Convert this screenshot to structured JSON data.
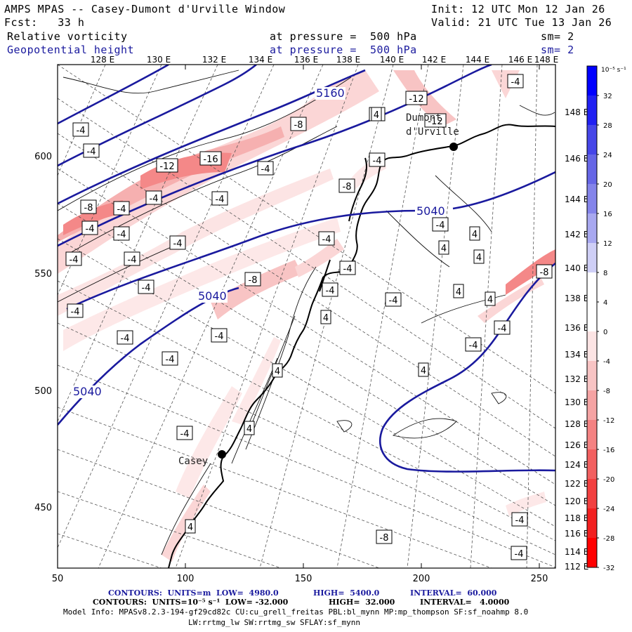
{
  "header": {
    "title": "AMPS MPAS -- Casey-Dumont d'Urville Window",
    "init": "Init: 12 UTC Mon 12 Jan 26",
    "fcst": "Fcst:   33 h",
    "valid": "Valid: 21 UTC Tue 13 Jan 26",
    "field1_name": "Relative vorticity",
    "field1_level": "at pressure =  500 hPa",
    "field1_sm": "sm= 2",
    "field2_name": "Geopotential height",
    "field2_level": "at pressure =  500 hPa",
    "field2_sm": "sm= 2"
  },
  "axes": {
    "top_lon_labels": [
      "128 E",
      "130 E",
      "132 E",
      "134 E",
      "136 E",
      "138 E",
      "140 E",
      "142 E",
      "144 E",
      "146 E",
      "148 E"
    ],
    "right_lon_labels": [
      "148 E",
      "146 E",
      "144 E",
      "142 E",
      "140 E",
      "138 E",
      "136 E",
      "134 E",
      "132 E",
      "130 E",
      "128 E",
      "126 E",
      "124 E",
      "122 E",
      "120 E",
      "118 E",
      "116 E",
      "114 E",
      "112 E"
    ],
    "x_ticks": [
      "50",
      "100",
      "150",
      "200",
      "250"
    ],
    "y_ticks": [
      "600",
      "550",
      "500",
      "450"
    ]
  },
  "colorbar": {
    "unit": "10⁻⁵ s⁻¹",
    "labels": [
      "32",
      "28",
      "24",
      "20",
      "16",
      "12",
      "8",
      "4",
      "0",
      "-4",
      "-8",
      "-12",
      "-16",
      "-20",
      "-24",
      "-28",
      "-32"
    ],
    "colors": [
      "#0000ff",
      "#2020f2",
      "#4646e8",
      "#6666e6",
      "#8484ea",
      "#a8a8f0",
      "#cfcff6",
      "#ffffff",
      "#ffffff",
      "#fce4e4",
      "#f8c4c4",
      "#f5a3a3",
      "#f48282",
      "#f26060",
      "#f24040",
      "#f22020",
      "#ff0000"
    ]
  },
  "places": {
    "dumont": "Dumont\nd'Urville",
    "casey": "Casey"
  },
  "height_labels": [
    "5160",
    "5040",
    "5040",
    "5040"
  ],
  "vort_labels": [
    "-4",
    "-4",
    "-12",
    "-12",
    "-8",
    "-4",
    "-4",
    "-16",
    "-12",
    "-4",
    "-4",
    "-8",
    "-4",
    "-4",
    "-8",
    "-4",
    "-4",
    "-4",
    "-4",
    "-4",
    "-4",
    "-4",
    "-4",
    "-4",
    "4",
    "4",
    "4",
    "-8",
    "-4",
    "4",
    "-4",
    "4",
    "4",
    "4",
    "-4",
    "-4",
    "4",
    "-4",
    "-4",
    "-8",
    "4",
    "4",
    "-4",
    "-4",
    "-4",
    "-4",
    "4",
    "-8",
    "-4",
    "-4"
  ],
  "footer": {
    "line1_a": "CONTOURS:  UNITS=m  LOW=  4980.0",
    "line1_b": "HIGH=  5400.0",
    "line1_c": "INTERVAL=  60.000",
    "line2_a": "CONTOURS:  UNITS=10⁻⁵ s⁻¹  LOW= -32.000",
    "line2_b": "HIGH=  32.000",
    "line2_c": "INTERVAL=   4.0000",
    "line3": "Model Info: MPASv8.2.3-194-gf29cd82c CU:cu_grell_freitas PBL:bl_mynn MP:mp_thompson SF:sf_noahmp 8.0",
    "line4": "LW:rrtmg_lw SW:rrtmg_sw SFLAY:sf_mynn"
  }
}
